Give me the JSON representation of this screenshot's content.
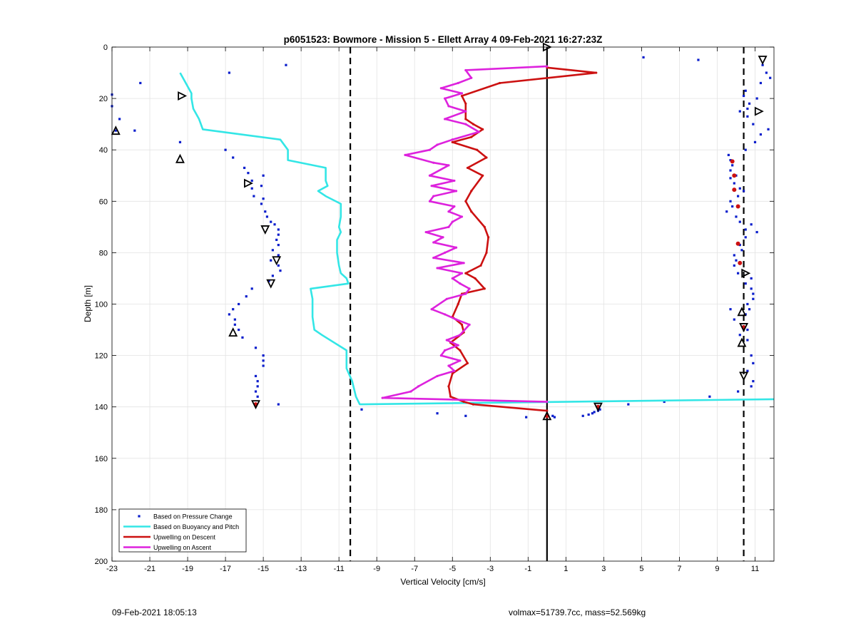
{
  "chart_data": {
    "type": "line",
    "title": "p6051523: Bowmore - Mission 5 - Ellett Array 4 09-Feb-2021 16:27:23Z",
    "xlabel": "Vertical Velocity [cm/s]",
    "ylabel": "Depth [m]",
    "xlim": [
      -23,
      12
    ],
    "ylim": [
      0,
      200
    ],
    "y_reversed": true,
    "xticks": [
      -23,
      -21,
      -19,
      -17,
      -15,
      -13,
      -11,
      -9,
      -7,
      -5,
      -3,
      -1,
      1,
      3,
      5,
      7,
      9,
      11
    ],
    "yticks": [
      0,
      20,
      40,
      60,
      80,
      100,
      120,
      140,
      160,
      180,
      200
    ],
    "grid": true,
    "legend_position": "bottom-left",
    "reference_lines": [
      {
        "x": -10.4,
        "style": "dashed",
        "color": "#000000"
      },
      {
        "x": 0,
        "style": "solid",
        "color": "#000000"
      },
      {
        "x": 10.4,
        "style": "dashed",
        "color": "#000000"
      }
    ],
    "series": [
      {
        "name": "Based on Pressure Change",
        "kind": "scatter",
        "color": "#0a1ecc",
        "points": [
          [
            -23,
            18.5
          ],
          [
            -23,
            23
          ],
          [
            -22.6,
            28
          ],
          [
            -22.8,
            32.5
          ],
          [
            -21.8,
            32.5
          ],
          [
            -21.5,
            14
          ],
          [
            -16.8,
            10
          ],
          [
            -13.8,
            7
          ],
          [
            5.1,
            4
          ],
          [
            8,
            5
          ],
          [
            11.4,
            7
          ],
          [
            11.6,
            10
          ],
          [
            11.8,
            12
          ],
          [
            11.3,
            14
          ],
          [
            10.5,
            17
          ],
          [
            10.4,
            19
          ],
          [
            11.1,
            20
          ],
          [
            10.7,
            22
          ],
          [
            10.6,
            24
          ],
          [
            10.2,
            25
          ],
          [
            10.6,
            27
          ],
          [
            10.9,
            30
          ],
          [
            11.7,
            32
          ],
          [
            11.3,
            34
          ],
          [
            11,
            37
          ],
          [
            10.5,
            40
          ],
          [
            -19.4,
            37
          ],
          [
            -17,
            40
          ],
          [
            -16.6,
            43
          ],
          [
            -16,
            47
          ],
          [
            -15.8,
            49
          ],
          [
            -15,
            50
          ],
          [
            -15.6,
            52
          ],
          [
            -15.1,
            54
          ],
          [
            -15.6,
            55
          ],
          [
            -15.5,
            58
          ],
          [
            -15,
            59
          ],
          [
            -15.1,
            61
          ],
          [
            -14.9,
            64
          ],
          [
            -14.8,
            66
          ],
          [
            -14.6,
            68
          ],
          [
            -14.4,
            69
          ],
          [
            -14.2,
            71
          ],
          [
            -14.2,
            73
          ],
          [
            -14.3,
            75
          ],
          [
            -14.2,
            77
          ],
          [
            -14.5,
            79
          ],
          [
            -14.2,
            81
          ],
          [
            -14.6,
            83
          ],
          [
            -14.2,
            85
          ],
          [
            -14.1,
            87
          ],
          [
            -14.5,
            89
          ],
          [
            -14.7,
            91
          ],
          [
            -15.6,
            94
          ],
          [
            -15.9,
            97
          ],
          [
            -16.3,
            100
          ],
          [
            -16.6,
            102
          ],
          [
            -16.8,
            104
          ],
          [
            -16.5,
            106
          ],
          [
            -16.5,
            108
          ],
          [
            -16.3,
            110
          ],
          [
            -16.1,
            113
          ],
          [
            -15.4,
            117
          ],
          [
            -15,
            120
          ],
          [
            -15,
            122
          ],
          [
            -15,
            124
          ],
          [
            -15.4,
            128
          ],
          [
            -15.3,
            130
          ],
          [
            -15.3,
            132
          ],
          [
            -15.4,
            134
          ],
          [
            -15.3,
            136
          ],
          [
            -14.2,
            139
          ],
          [
            9.6,
            42
          ],
          [
            9.7,
            44
          ],
          [
            9.8,
            46
          ],
          [
            9.7,
            48
          ],
          [
            10,
            50
          ],
          [
            9.7,
            51
          ],
          [
            9.9,
            53
          ],
          [
            10.2,
            55
          ],
          [
            10.4,
            56
          ],
          [
            10.1,
            58
          ],
          [
            9.7,
            60
          ],
          [
            9.8,
            62
          ],
          [
            9.5,
            64
          ],
          [
            10,
            66
          ],
          [
            10.2,
            68
          ],
          [
            10.8,
            69
          ],
          [
            10.5,
            71
          ],
          [
            11.1,
            72
          ],
          [
            10.5,
            74
          ],
          [
            10.2,
            77
          ],
          [
            10.3,
            79
          ],
          [
            9.9,
            81
          ],
          [
            10,
            83
          ],
          [
            9.9,
            85
          ],
          [
            10.1,
            88
          ],
          [
            10.8,
            90
          ],
          [
            10.5,
            92
          ],
          [
            10.8,
            94
          ],
          [
            10.9,
            96
          ],
          [
            10.9,
            98
          ],
          [
            10.6,
            100
          ],
          [
            10.7,
            102
          ],
          [
            9.7,
            102
          ],
          [
            10.5,
            104
          ],
          [
            9.9,
            106
          ],
          [
            10.6,
            110
          ],
          [
            10.2,
            112
          ],
          [
            10.6,
            114
          ],
          [
            10.8,
            120
          ],
          [
            10.9,
            123
          ],
          [
            10.6,
            126
          ],
          [
            10.9,
            130
          ],
          [
            10.8,
            132
          ],
          [
            10.1,
            134
          ],
          [
            8.6,
            136
          ],
          [
            6.2,
            138
          ],
          [
            4.3,
            139
          ],
          [
            -9.8,
            141
          ],
          [
            -5.8,
            142.5
          ],
          [
            -4.3,
            143.5
          ],
          [
            -1.1,
            144
          ],
          [
            0.3,
            143.5
          ],
          [
            0.4,
            144
          ],
          [
            1.9,
            143.5
          ],
          [
            2.2,
            143
          ],
          [
            2.4,
            142.5
          ],
          [
            2.5,
            142
          ],
          [
            2.7,
            141.5
          ],
          [
            2.8,
            141
          ]
        ]
      },
      {
        "name": "Based on Buoyancy and Pitch",
        "kind": "line",
        "color": "#33e6e6",
        "points": [
          [
            -19.4,
            10
          ],
          [
            -18.8,
            18
          ],
          [
            -18.8,
            20
          ],
          [
            -18.7,
            24
          ],
          [
            -18.4,
            28
          ],
          [
            -18.2,
            32
          ],
          [
            -14.1,
            36
          ],
          [
            -13.7,
            40
          ],
          [
            -13.7,
            44
          ],
          [
            -11.7,
            47
          ],
          [
            -11.7,
            52
          ],
          [
            -11.6,
            54
          ],
          [
            -12.1,
            56
          ],
          [
            -11.7,
            58
          ],
          [
            -10.9,
            61
          ],
          [
            -10.9,
            66
          ],
          [
            -11,
            70
          ],
          [
            -10.9,
            72
          ],
          [
            -11.1,
            75
          ],
          [
            -11.1,
            80
          ],
          [
            -11,
            85
          ],
          [
            -10.9,
            88
          ],
          [
            -10.6,
            90
          ],
          [
            -10.5,
            92
          ],
          [
            -12.5,
            94
          ],
          [
            -12.4,
            98
          ],
          [
            -12.4,
            105
          ],
          [
            -12.3,
            110
          ],
          [
            -11.9,
            112
          ],
          [
            -10.6,
            118
          ],
          [
            -10.6,
            125
          ],
          [
            -10.3,
            130
          ],
          [
            -10.1,
            136
          ],
          [
            -9.9,
            139
          ],
          [
            12,
            137
          ]
        ]
      },
      {
        "name": "Upwelling on Descent",
        "kind": "line",
        "color": "#cc1111",
        "points": [
          [
            0,
            8
          ],
          [
            2.6,
            10
          ],
          [
            -2.5,
            14
          ],
          [
            -4.5,
            19
          ],
          [
            -4.3,
            22
          ],
          [
            -4.3,
            28
          ],
          [
            -3.9,
            30
          ],
          [
            -3.4,
            32
          ],
          [
            -4,
            35
          ],
          [
            -5,
            37
          ],
          [
            -3.7,
            40
          ],
          [
            -3.2,
            43
          ],
          [
            -4.2,
            47
          ],
          [
            -3.4,
            50
          ],
          [
            -4,
            56
          ],
          [
            -4.3,
            60
          ],
          [
            -4,
            64
          ],
          [
            -3.3,
            70
          ],
          [
            -3.1,
            74
          ],
          [
            -3.2,
            80
          ],
          [
            -3.5,
            85
          ],
          [
            -4.3,
            88
          ],
          [
            -3.8,
            90
          ],
          [
            -3.3,
            94
          ],
          [
            -4.5,
            96
          ],
          [
            -4.7,
            100
          ],
          [
            -5,
            105
          ],
          [
            -4.5,
            108
          ],
          [
            -4.4,
            111
          ],
          [
            -5.1,
            115
          ],
          [
            -4.6,
            118
          ],
          [
            -4.2,
            123
          ],
          [
            -5,
            127
          ],
          [
            -5.2,
            132
          ],
          [
            -5.1,
            136
          ],
          [
            -4.4,
            138
          ],
          [
            -3.9,
            139
          ],
          [
            0,
            141.5
          ]
        ]
      },
      {
        "name": "Upwelling on Ascent",
        "kind": "line",
        "color": "#dd22dd",
        "points": [
          [
            0,
            7.5
          ],
          [
            -4.3,
            9
          ],
          [
            -4,
            12
          ],
          [
            -4.7,
            14
          ],
          [
            -5.6,
            16
          ],
          [
            -4.5,
            18
          ],
          [
            -5.4,
            20
          ],
          [
            -5.2,
            23
          ],
          [
            -4.3,
            25
          ],
          [
            -5.4,
            28
          ],
          [
            -4.3,
            30
          ],
          [
            -3.6,
            33
          ],
          [
            -5,
            36
          ],
          [
            -5.8,
            38
          ],
          [
            -6.2,
            40
          ],
          [
            -7.5,
            42
          ],
          [
            -6,
            45
          ],
          [
            -5.2,
            46
          ],
          [
            -6.2,
            50
          ],
          [
            -4.9,
            52
          ],
          [
            -6.1,
            54
          ],
          [
            -4.8,
            56
          ],
          [
            -6,
            58
          ],
          [
            -6.2,
            60
          ],
          [
            -4.9,
            62
          ],
          [
            -5.2,
            64
          ],
          [
            -4.5,
            66
          ],
          [
            -5,
            68
          ],
          [
            -5.2,
            70
          ],
          [
            -6.4,
            72
          ],
          [
            -5.5,
            74
          ],
          [
            -6,
            76
          ],
          [
            -4.8,
            78
          ],
          [
            -5.4,
            80
          ],
          [
            -6,
            82
          ],
          [
            -4.4,
            84
          ],
          [
            -5.8,
            86
          ],
          [
            -4.5,
            88
          ],
          [
            -5,
            90
          ],
          [
            -4.6,
            92
          ],
          [
            -4.1,
            94
          ],
          [
            -4.3,
            96
          ],
          [
            -5.3,
            98
          ],
          [
            -6.1,
            102
          ],
          [
            -5.4,
            104
          ],
          [
            -4.8,
            106
          ],
          [
            -4.1,
            108
          ],
          [
            -4.6,
            112
          ],
          [
            -5.3,
            114
          ],
          [
            -4.7,
            116
          ],
          [
            -5.4,
            118
          ],
          [
            -5.6,
            120
          ],
          [
            -4.6,
            122
          ],
          [
            -5.2,
            124
          ],
          [
            -4.9,
            126
          ],
          [
            -5.8,
            128
          ],
          [
            -6.8,
            132
          ],
          [
            -7.2,
            134
          ],
          [
            -8.7,
            136.5
          ],
          [
            0,
            138
          ]
        ]
      }
    ],
    "triangle_markers": [
      {
        "x": 0,
        "y": 0,
        "dir": "right"
      },
      {
        "x": 11.4,
        "y": 5,
        "dir": "down"
      },
      {
        "x": -19.3,
        "y": 19,
        "dir": "right"
      },
      {
        "x": 11.2,
        "y": 25,
        "dir": "right"
      },
      {
        "x": -22.8,
        "y": 32.5,
        "dir": "up"
      },
      {
        "x": -19.4,
        "y": 43.5,
        "dir": "up"
      },
      {
        "x": -15.8,
        "y": 53,
        "dir": "right"
      },
      {
        "x": -14.9,
        "y": 71,
        "dir": "down"
      },
      {
        "x": -14.3,
        "y": 83,
        "dir": "down"
      },
      {
        "x": -14.6,
        "y": 92,
        "dir": "down"
      },
      {
        "x": -16.6,
        "y": 111,
        "dir": "up"
      },
      {
        "x": 10.5,
        "y": 88,
        "dir": "right"
      },
      {
        "x": 10.3,
        "y": 103,
        "dir": "up"
      },
      {
        "x": 10.4,
        "y": 109,
        "dir": "down"
      },
      {
        "x": 10.3,
        "y": 115,
        "dir": "up"
      },
      {
        "x": 10.4,
        "y": 128,
        "dir": "down"
      },
      {
        "x": 2.7,
        "y": 140,
        "dir": "down"
      },
      {
        "x": 0,
        "y": 143.5,
        "dir": "up"
      },
      {
        "x": -15.4,
        "y": 139,
        "dir": "down"
      }
    ],
    "red_markers": [
      {
        "x": 9.8,
        "y": 44.5
      },
      {
        "x": 9.9,
        "y": 50
      },
      {
        "x": 9.9,
        "y": 55.5
      },
      {
        "x": 10.1,
        "y": 62
      },
      {
        "x": 10.1,
        "y": 76.5
      },
      {
        "x": 10.2,
        "y": 84
      },
      {
        "x": 10.4,
        "y": 109
      },
      {
        "x": -15.4,
        "y": 139
      },
      {
        "x": 2.7,
        "y": 140
      },
      {
        "x": 0,
        "y": 143.5
      }
    ]
  },
  "footer": {
    "timestamp": "09-Feb-2021 18:05:13",
    "info": "volmax=51739.7cc, mass=52.569kg"
  }
}
